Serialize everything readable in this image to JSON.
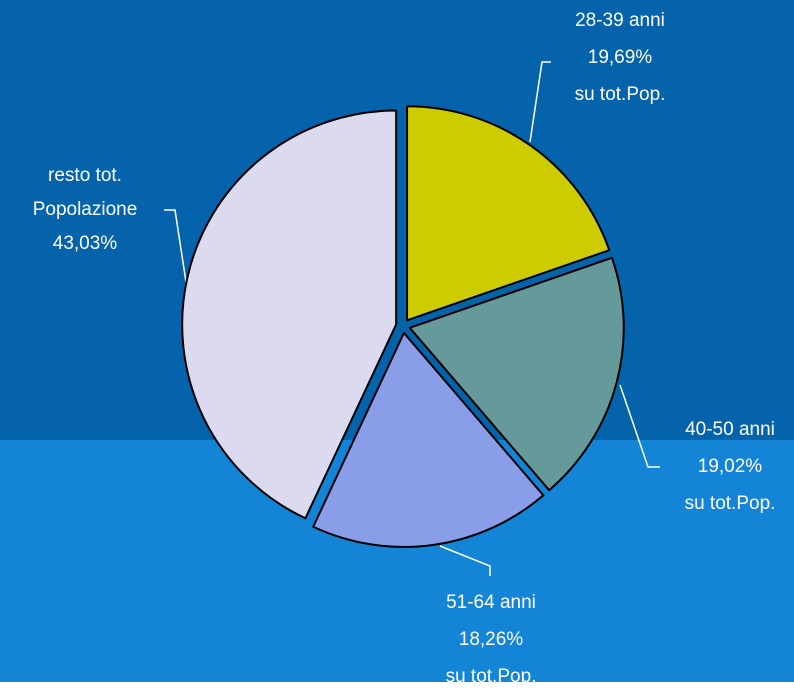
{
  "chart_data": {
    "type": "pie",
    "categories": [
      "28-39 anni",
      "40-50 anni",
      "51-64 anni",
      "resto tot. Popolazione"
    ],
    "values": [
      19.69,
      19.02,
      18.26,
      43.03
    ],
    "value_labels": [
      "19,69%",
      "19,02%",
      "18,26%",
      "43,03%"
    ],
    "notes": [
      "su tot.Pop.",
      "su tot.Pop.",
      "su tot.Pop."
    ],
    "colors": [
      "#cccc00",
      "#669999",
      "#8a9de8",
      "#dcdaee"
    ]
  }
}
